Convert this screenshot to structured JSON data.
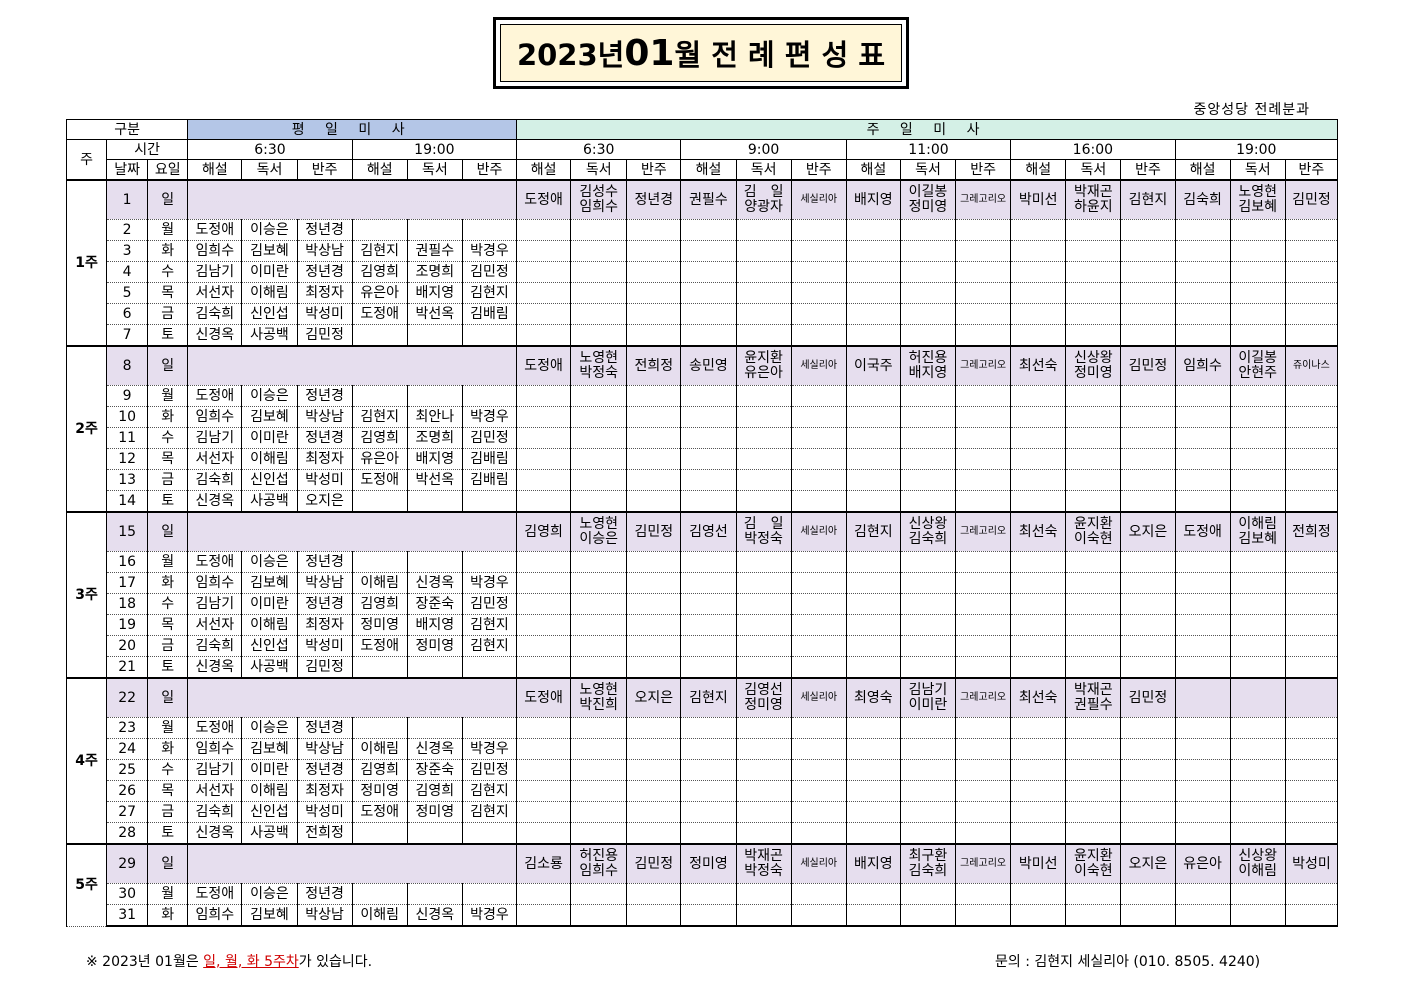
{
  "title": {
    "pre": "2023년 ",
    "month": "01",
    "post": "월 전 례 편 성 표"
  },
  "org": "중앙성당 전례분과",
  "header": {
    "gubun": "구분",
    "ju": "주",
    "sigan": "시간",
    "weekday_section": "평 일 미 사",
    "sunday_section": "주 일 미 사",
    "weekday_times": [
      "6:30",
      "19:00"
    ],
    "sunday_times": [
      "6:30",
      "9:00",
      "11:00",
      "16:00",
      "19:00"
    ],
    "nalja": "날짜",
    "yoil": "요일",
    "roles": [
      "해설",
      "독서",
      "반주"
    ]
  },
  "weeks": [
    {
      "label": "1주",
      "rows": [
        {
          "date": "1",
          "day": "일",
          "sun": [
            "도정애",
            [
              "김성수",
              "임희수"
            ],
            "정년경",
            "권필수",
            [
              "김　일",
              "양광자"
            ],
            "세실리아",
            "배지영",
            [
              "이길봉",
              "정미영"
            ],
            "그레고리오",
            "박미선",
            [
              "박재곤",
              "하윤지"
            ],
            "김현지",
            "김숙희",
            [
              "노영현",
              "김보혜"
            ],
            "김민정"
          ]
        },
        {
          "date": "2",
          "day": "월",
          "wd": [
            "도정애",
            "이승은",
            "정년경",
            "",
            "",
            ""
          ]
        },
        {
          "date": "3",
          "day": "화",
          "wd": [
            "임희수",
            "김보혜",
            "박상남",
            "김현지",
            "권필수",
            "박경우"
          ]
        },
        {
          "date": "4",
          "day": "수",
          "wd": [
            "김남기",
            "이미란",
            "정년경",
            "김영희",
            "조명희",
            "김민정"
          ]
        },
        {
          "date": "5",
          "day": "목",
          "wd": [
            "서선자",
            "이해림",
            "최정자",
            "유은아",
            "배지영",
            "김현지"
          ]
        },
        {
          "date": "6",
          "day": "금",
          "wd": [
            "김숙희",
            "신인섭",
            "박성미",
            "도정애",
            "박선옥",
            "김배림"
          ]
        },
        {
          "date": "7",
          "day": "토",
          "wd": [
            "신경옥",
            "사공백",
            "김민정",
            "",
            "",
            ""
          ]
        }
      ]
    },
    {
      "label": "2주",
      "rows": [
        {
          "date": "8",
          "day": "일",
          "sun": [
            "도정애",
            [
              "노영현",
              "박정숙"
            ],
            "전희정",
            "송민영",
            [
              "윤지환",
              "유은아"
            ],
            "세실리아",
            "이국주",
            [
              "허진용",
              "배지영"
            ],
            "그레고리오",
            "최선숙",
            [
              "신상왕",
              "정미영"
            ],
            "김민정",
            "임희수",
            [
              "이길봉",
              "안현주"
            ],
            "쥬이나스"
          ]
        },
        {
          "date": "9",
          "day": "월",
          "wd": [
            "도정애",
            "이승은",
            "정년경",
            "",
            "",
            ""
          ]
        },
        {
          "date": "10",
          "day": "화",
          "wd": [
            "임희수",
            "김보혜",
            "박상남",
            "김현지",
            "최안나",
            "박경우"
          ]
        },
        {
          "date": "11",
          "day": "수",
          "wd": [
            "김남기",
            "이미란",
            "정년경",
            "김영희",
            "조명희",
            "김민정"
          ]
        },
        {
          "date": "12",
          "day": "목",
          "wd": [
            "서선자",
            "이해림",
            "최정자",
            "유은아",
            "배지영",
            "김배림"
          ]
        },
        {
          "date": "13",
          "day": "금",
          "wd": [
            "김숙희",
            "신인섭",
            "박성미",
            "도정애",
            "박선옥",
            "김배림"
          ]
        },
        {
          "date": "14",
          "day": "토",
          "wd": [
            "신경옥",
            "사공백",
            "오지은",
            "",
            "",
            ""
          ]
        }
      ]
    },
    {
      "label": "3주",
      "rows": [
        {
          "date": "15",
          "day": "일",
          "sun": [
            "김영희",
            [
              "노영현",
              "이승은"
            ],
            "김민정",
            "김영선",
            [
              "김　일",
              "박정숙"
            ],
            "세실리아",
            "김현지",
            [
              "신상왕",
              "김숙희"
            ],
            "그레고리오",
            "최선숙",
            [
              "윤지환",
              "이숙현"
            ],
            "오지은",
            "도정애",
            [
              "이해림",
              "김보혜"
            ],
            "전희정"
          ]
        },
        {
          "date": "16",
          "day": "월",
          "wd": [
            "도정애",
            "이승은",
            "정년경",
            "",
            "",
            ""
          ]
        },
        {
          "date": "17",
          "day": "화",
          "wd": [
            "임희수",
            "김보혜",
            "박상남",
            "이해림",
            "신경옥",
            "박경우"
          ]
        },
        {
          "date": "18",
          "day": "수",
          "wd": [
            "김남기",
            "이미란",
            "정년경",
            "김영희",
            "장준숙",
            "김민정"
          ]
        },
        {
          "date": "19",
          "day": "목",
          "wd": [
            "서선자",
            "이해림",
            "최정자",
            "정미영",
            "배지영",
            "김현지"
          ]
        },
        {
          "date": "20",
          "day": "금",
          "wd": [
            "김숙희",
            "신인섭",
            "박성미",
            "도정애",
            "정미영",
            "김현지"
          ]
        },
        {
          "date": "21",
          "day": "토",
          "wd": [
            "신경옥",
            "사공백",
            "김민정",
            "",
            "",
            ""
          ]
        }
      ]
    },
    {
      "label": "4주",
      "rows": [
        {
          "date": "22",
          "day": "일",
          "sun": [
            "도정애",
            [
              "노영현",
              "박진희"
            ],
            "오지은",
            "김현지",
            [
              "김영선",
              "정미영"
            ],
            "세실리아",
            "최영숙",
            [
              "김남기",
              "이미란"
            ],
            "그레고리오",
            "최선숙",
            [
              "박재곤",
              "권필수"
            ],
            "김민정",
            "",
            "",
            ""
          ]
        },
        {
          "date": "23",
          "day": "월",
          "wd": [
            "도정애",
            "이승은",
            "정년경",
            "",
            "",
            ""
          ]
        },
        {
          "date": "24",
          "day": "화",
          "wd": [
            "임희수",
            "김보혜",
            "박상남",
            "이해림",
            "신경옥",
            "박경우"
          ]
        },
        {
          "date": "25",
          "day": "수",
          "wd": [
            "김남기",
            "이미란",
            "정년경",
            "김영희",
            "장준숙",
            "김민정"
          ]
        },
        {
          "date": "26",
          "day": "목",
          "wd": [
            "서선자",
            "이해림",
            "최정자",
            "정미영",
            "김영희",
            "김현지"
          ]
        },
        {
          "date": "27",
          "day": "금",
          "wd": [
            "김숙희",
            "신인섭",
            "박성미",
            "도정애",
            "정미영",
            "김현지"
          ]
        },
        {
          "date": "28",
          "day": "토",
          "wd": [
            "신경옥",
            "사공백",
            "전희정",
            "",
            "",
            ""
          ]
        }
      ]
    },
    {
      "label": "5주",
      "rows": [
        {
          "date": "29",
          "day": "일",
          "sun": [
            "김소룡",
            [
              "허진용",
              "임희수"
            ],
            "김민정",
            "정미영",
            [
              "박재곤",
              "박정숙"
            ],
            "세실리아",
            "배지영",
            [
              "최구환",
              "김숙희"
            ],
            "그레고리오",
            "박미선",
            [
              "윤지환",
              "이숙현"
            ],
            "오지은",
            "유은아",
            [
              "신상왕",
              "이해림"
            ],
            "박성미"
          ]
        },
        {
          "date": "30",
          "day": "월",
          "wd": [
            "도정애",
            "이승은",
            "정년경",
            "",
            "",
            ""
          ]
        },
        {
          "date": "31",
          "day": "화",
          "wd": [
            "임희수",
            "김보혜",
            "박상남",
            "이해림",
            "신경옥",
            "박경우"
          ]
        }
      ]
    }
  ],
  "footer": {
    "note_pre": "※ 2023년 01월은 ",
    "note_red": "일, 월, 화 5주차",
    "note_post": "가 있습니다.",
    "contact": "문의 : 김현지 세실리아 (010. 8505. 4240)"
  }
}
